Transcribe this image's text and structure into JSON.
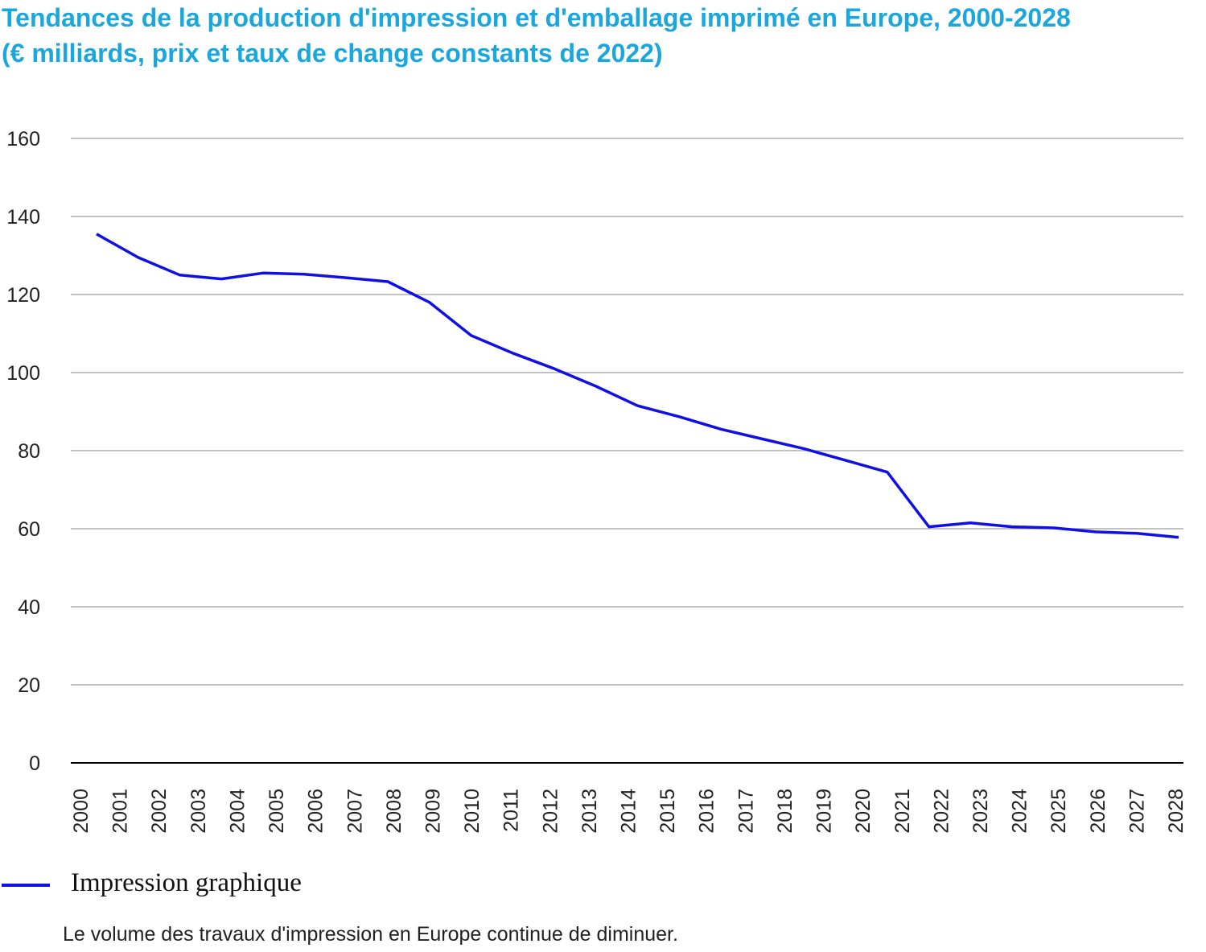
{
  "title_line1": "Tendances de la production d'impression et d'emballage imprimé en Europe, 2000-2028",
  "title_line2": "(€ milliards, prix et taux de change constants de 2022)",
  "colors": {
    "title": "#1aa7dd",
    "series": "#1010e6",
    "grid": "#9e9e9e",
    "zero_axis": "#000000"
  },
  "chart_data": {
    "type": "line",
    "title": "Tendances de la production d'impression et d'emballage imprimé en Europe, 2000-2028 (€ milliards, prix et taux de change constants de 2022)",
    "xlabel": "",
    "ylabel": "",
    "ylim": [
      0,
      160
    ],
    "y_ticks": [
      0,
      20,
      40,
      60,
      80,
      100,
      120,
      140,
      160
    ],
    "grid": true,
    "legend_position": "bottom-left",
    "categories": [
      "2000",
      "2001",
      "2002",
      "2003",
      "2004",
      "2005",
      "2006",
      "2007",
      "2008",
      "2009",
      "2010",
      "2011",
      "2012",
      "2013",
      "2014",
      "2015",
      "2016",
      "2017",
      "2018",
      "2019",
      "2020",
      "2021",
      "2022",
      "2023",
      "2024",
      "2025",
      "2026",
      "2027",
      "2028"
    ],
    "series": [
      {
        "name": "Impression graphique",
        "values": [
          135.5,
          129.5,
          125,
          124,
          125.5,
          125.2,
          124.3,
          123.3,
          118,
          109.5,
          105,
          101,
          96.5,
          91.5,
          88.7,
          85.5,
          83,
          80.5,
          77.5,
          74.5,
          60.5,
          61.5,
          60.5,
          60.2,
          59.2,
          58.8,
          57.8,
          null,
          null
        ]
      }
    ]
  },
  "legend": {
    "label": "Impression graphique"
  },
  "caption": "Le volume des travaux d'impression en Europe continue de diminuer."
}
